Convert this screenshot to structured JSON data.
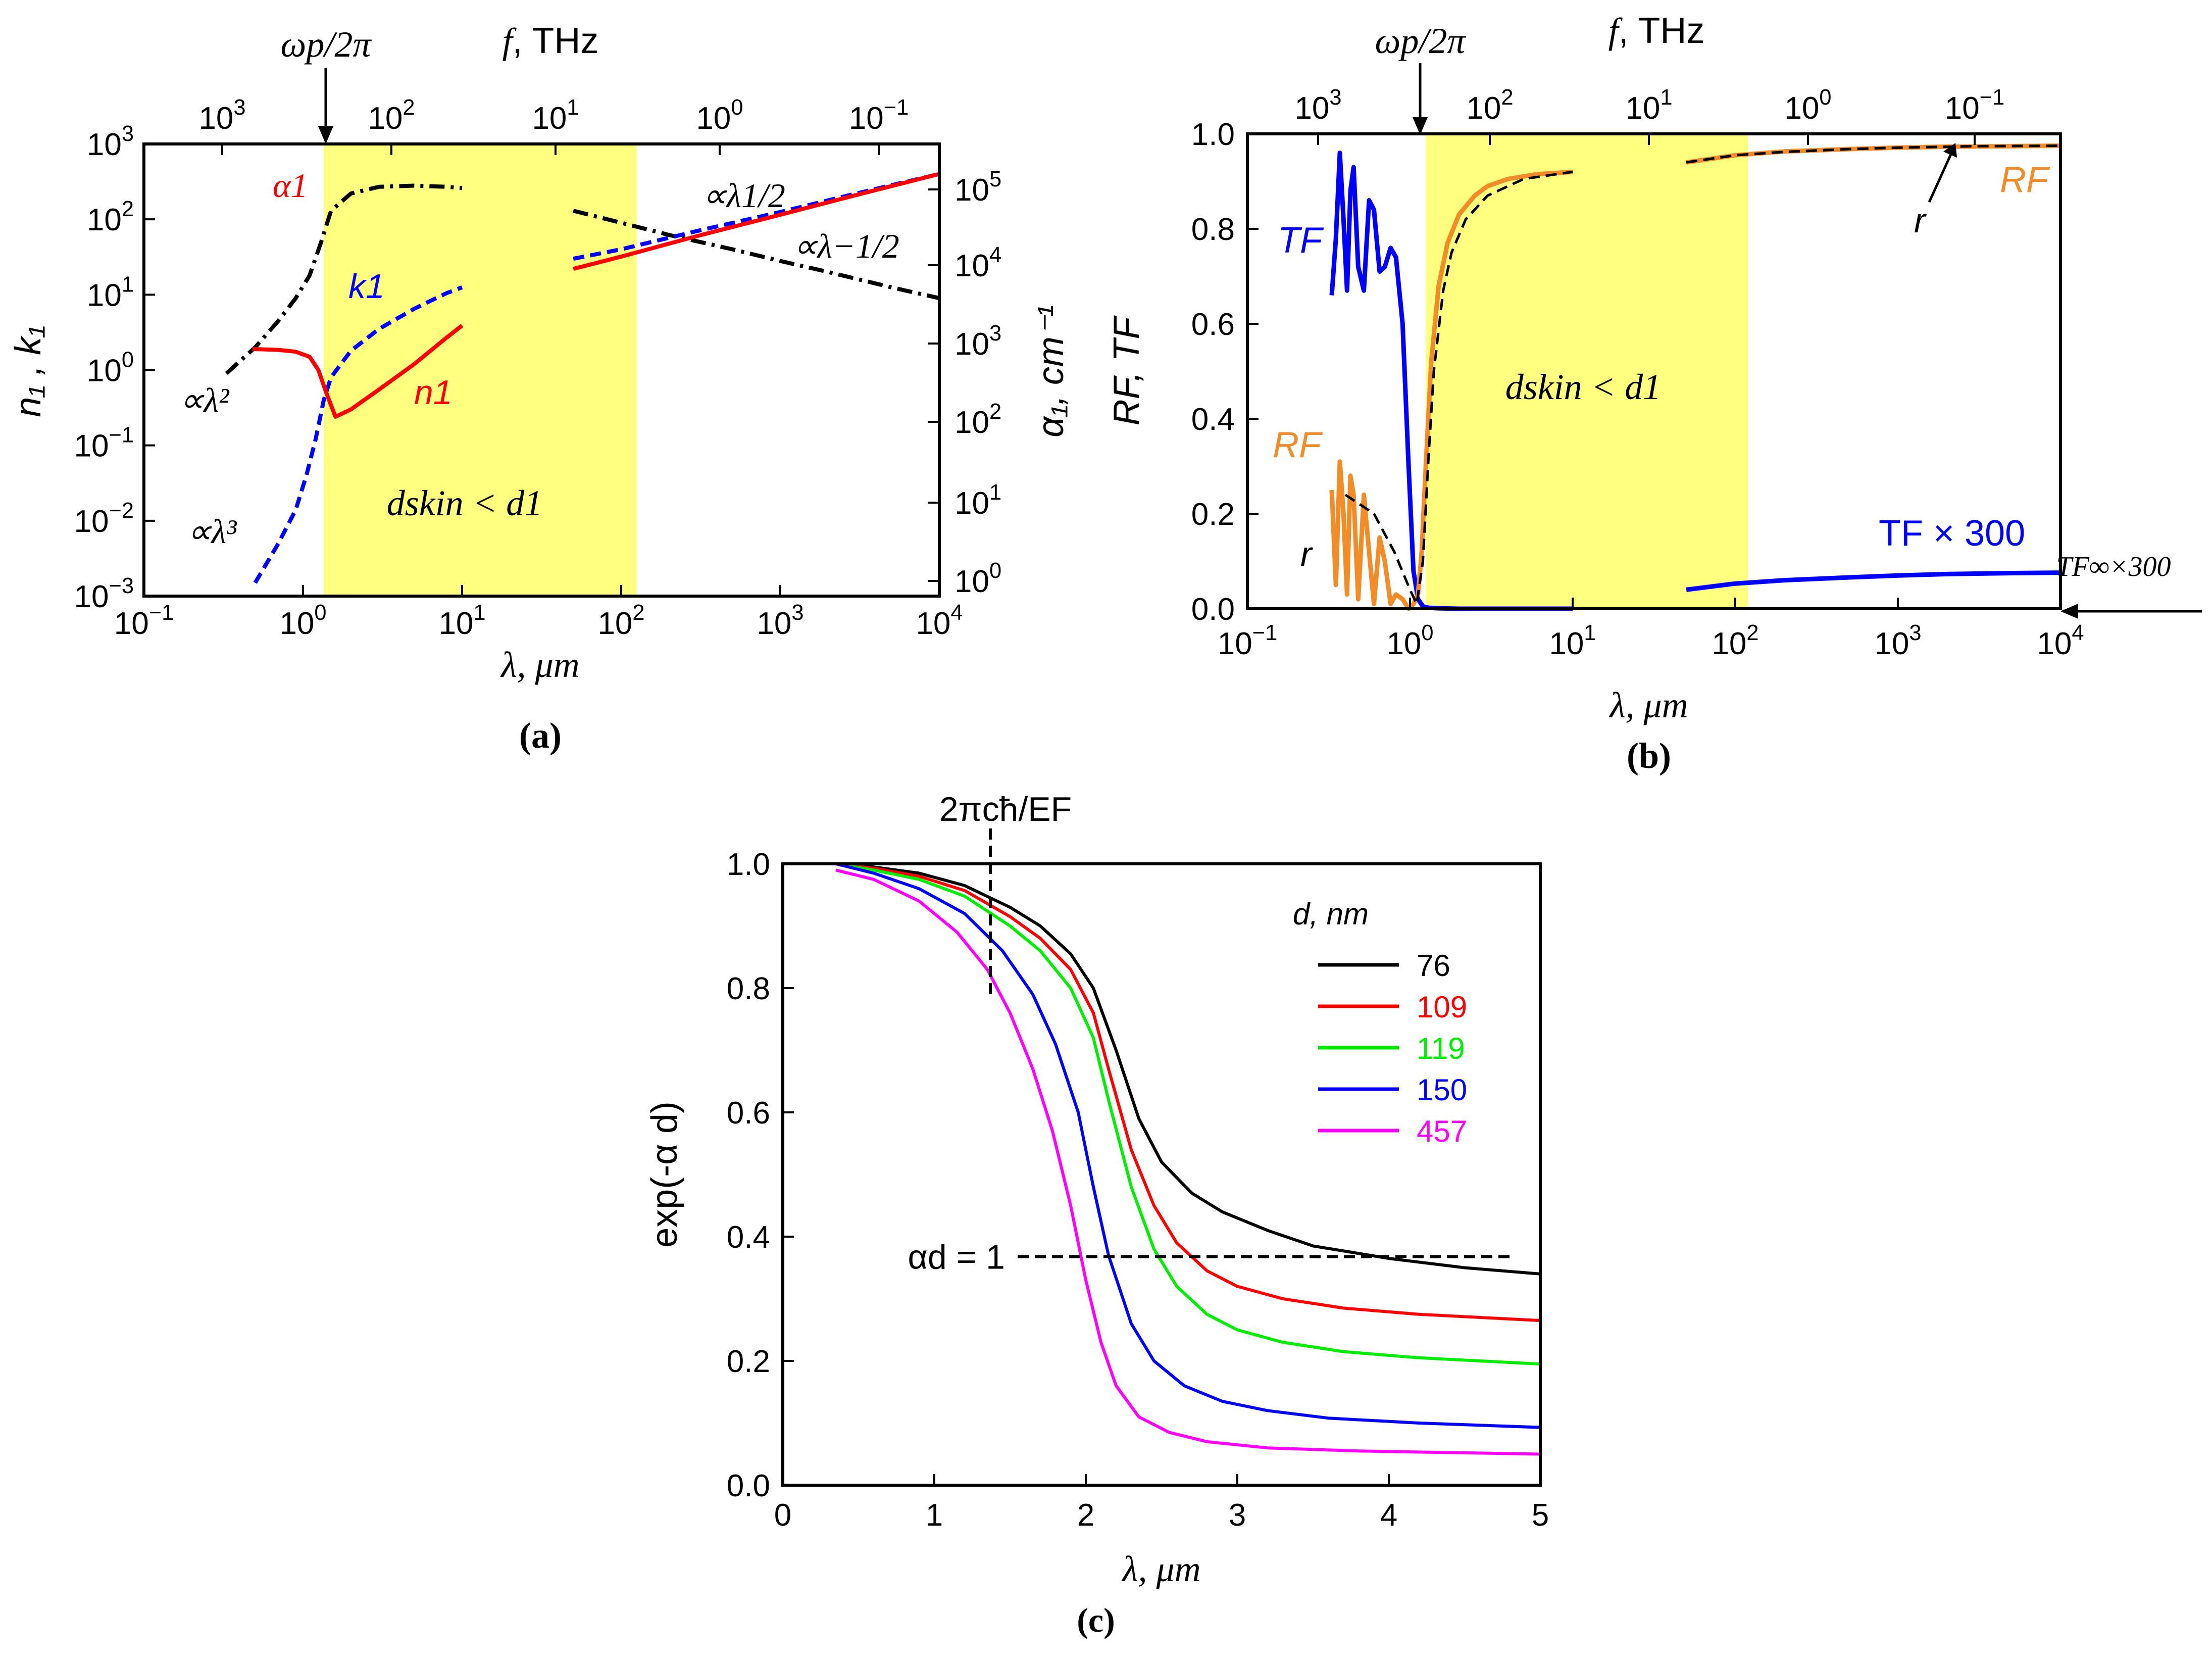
{
  "chart_data": [
    {
      "id": "a",
      "type": "line",
      "panel_label": "(a)",
      "xlabel": "λ, μm",
      "xscale": "log",
      "xlim": [
        0.1,
        10000
      ],
      "x_ticks": [
        "10",
        "10",
        "10",
        "10",
        "10",
        "10"
      ],
      "x_tick_exps": [
        "−1",
        "0",
        "1",
        "2",
        "3",
        "4"
      ],
      "top_axis_label": "f, THz",
      "top_ticks": [
        "10",
        "10",
        "10",
        "10"
      ],
      "top_tick_exps": [
        "3",
        "2",
        "1",
        "0"
      ],
      "top_tick_last": "10",
      "top_tick_last_exp": "−1",
      "ylabel": "n₁ , k₁",
      "yscale": "log",
      "ylim": [
        0.001,
        1000
      ],
      "y_ticks": [
        "10",
        "10",
        "10",
        "10",
        "10",
        "10",
        "10"
      ],
      "y_tick_exps": [
        "−3",
        "−2",
        "−1",
        "0",
        "1",
        "2",
        "3"
      ],
      "y2label": "α₁, cm⁻¹",
      "y2_ticks": [
        "10",
        "10",
        "10",
        "10",
        "10",
        "10"
      ],
      "y2_tick_exps": [
        "0",
        "1",
        "2",
        "3",
        "4",
        "5"
      ],
      "shaded_region_x": [
        1.35,
        125
      ],
      "plasma_label": "ωp/2π",
      "plasma_x": 1.35,
      "annotations": {
        "skin": "dskin < d1",
        "lam2": "∝λ²",
        "lam3": "∝λ³",
        "lam12": "∝λ1/2",
        "lamm12": "∝λ−1/2",
        "alpha": "α1",
        "k": "k1",
        "n": "n1"
      },
      "series": [
        {
          "name": "α1",
          "color": "#000000",
          "style": "dashdot",
          "segments": [
            {
              "x": [
                0.33,
                0.5,
                0.7,
                0.9,
                1.1,
                1.3,
                1.5,
                2,
                3,
                5,
                8,
                10
              ],
              "y": [
                0.9,
                2.0,
                4.5,
                9,
                18,
                50,
                130,
                220,
                270,
                280,
                270,
                260
              ]
            },
            {
              "x": [
                50,
                100,
                200,
                500,
                1000,
                2000,
                5000,
                10000
              ],
              "y": [
                130,
                90,
                62,
                40,
                28,
                20,
                12.5,
                9
              ]
            }
          ]
        },
        {
          "name": "k1",
          "color": "#0000ff",
          "style": "dashed",
          "segments": [
            {
              "x": [
                0.5,
                0.7,
                0.9,
                1.05,
                1.2,
                1.35,
                1.5,
                2,
                3,
                5,
                8,
                10
              ],
              "y": [
                0.0015,
                0.005,
                0.014,
                0.04,
                0.12,
                0.4,
                0.8,
                1.8,
                3.5,
                6.5,
                10.5,
                12.5
              ]
            },
            {
              "x": [
                50,
                100,
                300,
                1000,
                3000,
                10000
              ],
              "y": [
                30,
                40,
                70,
                125,
                220,
                400
              ]
            }
          ]
        },
        {
          "name": "n1",
          "color": "#ff0000",
          "style": "solid",
          "segments": [
            {
              "x": [
                0.48,
                0.7,
                0.9,
                1.1,
                1.25,
                1.4,
                1.6,
                2,
                3,
                5,
                8,
                10
              ],
              "y": [
                1.9,
                1.85,
                1.75,
                1.5,
                1.0,
                0.5,
                0.24,
                0.3,
                0.55,
                1.2,
                2.7,
                3.9
              ]
            },
            {
              "x": [
                50,
                100,
                300,
                1000,
                3000,
                10000
              ],
              "y": [
                22,
                32,
                60,
                115,
                210,
                400
              ]
            }
          ]
        }
      ]
    },
    {
      "id": "b",
      "type": "line",
      "panel_label": "(b)",
      "xlabel": "λ, μm",
      "xscale": "log",
      "xlim": [
        0.1,
        10000
      ],
      "x_ticks": [
        "10",
        "10",
        "10",
        "10",
        "10",
        "10"
      ],
      "x_tick_exps": [
        "−1",
        "0",
        "1",
        "2",
        "3",
        "4"
      ],
      "top_axis_label": "f, THz",
      "top_ticks": [
        "10",
        "10",
        "10",
        "10"
      ],
      "top_tick_exps": [
        "3",
        "2",
        "1",
        "0"
      ],
      "top_tick_last": "10",
      "top_tick_last_exp": "−1",
      "ylabel": "RF, TF",
      "ylim": [
        0.0,
        1.0
      ],
      "y_ticks": [
        "0.0",
        "0.2",
        "0.4",
        "0.6",
        "0.8",
        "1.0"
      ],
      "shaded_region_x": [
        1.25,
        120
      ],
      "plasma_label": "ωp/2π",
      "plasma_x": 1.25,
      "annotations": {
        "skin": "dskin < d1",
        "TF": "TF",
        "RF_left": "RF",
        "RF_right": "RF",
        "r_left": "r",
        "r_right": "r",
        "TF300": "TF × 300",
        "TFinf": "TF∞×300"
      },
      "series": [
        {
          "name": "TF",
          "color": "#0000ff",
          "style": "solid",
          "segments": [
            {
              "x": [
                0.33,
                0.35,
                0.37,
                0.39,
                0.41,
                0.43,
                0.45,
                0.48,
                0.52,
                0.56,
                0.6,
                0.65,
                0.7,
                0.76,
                0.82,
                0.9,
                0.98,
                1.05,
                1.12,
                1.2,
                1.3,
                1.5,
                2,
                10
              ],
              "y": [
                0.66,
                0.78,
                0.96,
                0.82,
                0.67,
                0.88,
                0.93,
                0.72,
                0.67,
                0.86,
                0.84,
                0.71,
                0.72,
                0.76,
                0.74,
                0.6,
                0.3,
                0.08,
                0.02,
                0.005,
                0.002,
                0.001,
                0.0,
                0.0
              ]
            },
            {
              "x": [
                50,
                100,
                200,
                500,
                1000,
                2000,
                5000,
                10000
              ],
              "y": [
                0.04,
                0.053,
                0.06,
                0.066,
                0.07,
                0.073,
                0.075,
                0.076
              ]
            }
          ]
        },
        {
          "name": "RF",
          "color": "#f28c28",
          "style": "solid",
          "segments": [
            {
              "x": [
                0.33,
                0.35,
                0.37,
                0.39,
                0.41,
                0.43,
                0.45,
                0.48,
                0.52,
                0.56,
                0.6,
                0.65,
                0.7,
                0.76,
                0.82,
                0.9,
                0.98,
                1.05,
                1.12,
                1.18,
                1.25,
                1.35,
                1.5,
                1.7,
                2,
                2.5,
                3,
                4,
                6,
                10
              ],
              "y": [
                0.25,
                0.05,
                0.31,
                0.2,
                0.03,
                0.28,
                0.24,
                0.02,
                0.24,
                0.12,
                0.01,
                0.15,
                0.1,
                0.01,
                0.03,
                0.02,
                0.0,
                0.01,
                0.03,
                0.12,
                0.3,
                0.52,
                0.68,
                0.77,
                0.83,
                0.87,
                0.89,
                0.905,
                0.915,
                0.92
              ]
            },
            {
              "x": [
                50,
                100,
                200,
                500,
                1000,
                2000,
                5000,
                10000
              ],
              "y": [
                0.94,
                0.955,
                0.963,
                0.968,
                0.971,
                0.973,
                0.974,
                0.975
              ]
            }
          ]
        },
        {
          "name": "r",
          "color": "#000000",
          "style": "dashed",
          "segments": [
            {
              "x": [
                0.4,
                0.6,
                0.8,
                1.0,
                1.1,
                1.2,
                1.3,
                1.4,
                1.6,
                1.8,
                2.2,
                3,
                5,
                10
              ],
              "y": [
                0.24,
                0.2,
                0.12,
                0.04,
                0.01,
                0.1,
                0.32,
                0.5,
                0.67,
                0.75,
                0.82,
                0.87,
                0.905,
                0.92
              ]
            },
            {
              "x": [
                50,
                100,
                200,
                500,
                1000,
                3000,
                10000
              ],
              "y": [
                0.94,
                0.955,
                0.962,
                0.968,
                0.971,
                0.974,
                0.975
              ]
            }
          ]
        }
      ]
    },
    {
      "id": "c",
      "type": "line",
      "panel_label": "(c)",
      "xlabel": "λ, μm",
      "xlim": [
        0,
        5
      ],
      "x_ticks": [
        "0",
        "1",
        "2",
        "3",
        "4",
        "5"
      ],
      "ylabel": "exp(-α d)",
      "ylim": [
        0.0,
        1.0
      ],
      "y_ticks": [
        "0.0",
        "0.2",
        "0.4",
        "0.6",
        "0.8",
        "1.0"
      ],
      "legend_title": "d, nm",
      "legend_placement": "top-right",
      "vline_label": "2πcħ/EF",
      "vline_x": 1.37,
      "hline_label": "αd = 1",
      "hline_y": 0.3679,
      "series": [
        {
          "name": "76",
          "color": "#000000",
          "x": [
            0.35,
            0.6,
            0.9,
            1.2,
            1.5,
            1.7,
            1.9,
            2.05,
            2.2,
            2.35,
            2.5,
            2.7,
            2.9,
            3.2,
            3.5,
            4.0,
            4.5,
            5.0
          ],
          "y": [
            1.0,
            0.995,
            0.985,
            0.965,
            0.93,
            0.9,
            0.855,
            0.8,
            0.7,
            0.59,
            0.52,
            0.47,
            0.44,
            0.41,
            0.385,
            0.365,
            0.35,
            0.34
          ]
        },
        {
          "name": "109",
          "color": "#ff0000",
          "x": [
            0.35,
            0.6,
            0.9,
            1.2,
            1.5,
            1.7,
            1.9,
            2.05,
            2.15,
            2.3,
            2.45,
            2.6,
            2.8,
            3.0,
            3.3,
            3.7,
            4.2,
            5.0
          ],
          "y": [
            1.0,
            0.993,
            0.98,
            0.957,
            0.915,
            0.88,
            0.83,
            0.76,
            0.67,
            0.54,
            0.45,
            0.39,
            0.345,
            0.32,
            0.3,
            0.285,
            0.275,
            0.265
          ]
        },
        {
          "name": "119",
          "color": "#00ee00",
          "x": [
            0.35,
            0.6,
            0.9,
            1.2,
            1.5,
            1.7,
            1.9,
            2.05,
            2.15,
            2.3,
            2.45,
            2.6,
            2.8,
            3.0,
            3.3,
            3.7,
            4.2,
            5.0
          ],
          "y": [
            1.0,
            0.99,
            0.975,
            0.948,
            0.9,
            0.86,
            0.8,
            0.72,
            0.62,
            0.48,
            0.38,
            0.32,
            0.275,
            0.25,
            0.23,
            0.215,
            0.205,
            0.195
          ]
        },
        {
          "name": "150",
          "color": "#0000ff",
          "x": [
            0.35,
            0.6,
            0.9,
            1.2,
            1.45,
            1.65,
            1.8,
            1.95,
            2.05,
            2.15,
            2.3,
            2.45,
            2.65,
            2.9,
            3.2,
            3.6,
            4.2,
            5.0
          ],
          "y": [
            1.0,
            0.985,
            0.96,
            0.92,
            0.86,
            0.79,
            0.71,
            0.6,
            0.48,
            0.37,
            0.26,
            0.2,
            0.16,
            0.135,
            0.12,
            0.108,
            0.1,
            0.093
          ]
        },
        {
          "name": "457",
          "color": "#ff00ff",
          "x": [
            0.35,
            0.6,
            0.9,
            1.15,
            1.35,
            1.5,
            1.65,
            1.78,
            1.9,
            2.0,
            2.1,
            2.2,
            2.35,
            2.55,
            2.8,
            3.2,
            3.8,
            5.0
          ],
          "y": [
            0.99,
            0.975,
            0.94,
            0.89,
            0.83,
            0.76,
            0.67,
            0.57,
            0.45,
            0.33,
            0.23,
            0.16,
            0.11,
            0.085,
            0.07,
            0.06,
            0.055,
            0.05
          ]
        }
      ]
    }
  ]
}
